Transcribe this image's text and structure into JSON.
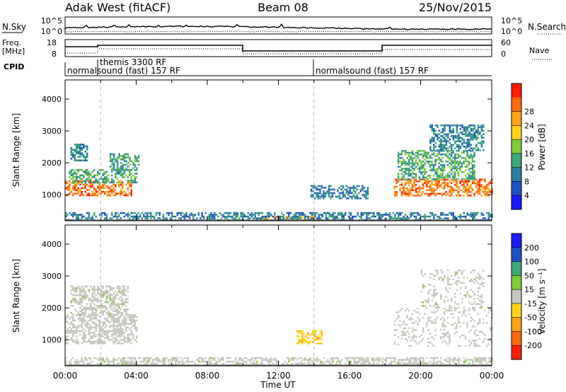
{
  "header": {
    "station": "Adak West (fitACF)",
    "beam": "Beam 08",
    "date": "25/Nov/2015"
  },
  "labels": {
    "nsky": "N.Sky",
    "nsearch": "N.Search",
    "freq_line1": "Freq.",
    "freq_line2": "[MHz]",
    "nave": "Nave",
    "cpid": "CPID",
    "power_axis": "Power [dB]",
    "velocity_axis": "Velocity [m s⁻¹]",
    "slant_range": "Slant Range [km]",
    "time_axis": "Time UT"
  },
  "noise_panel": {
    "left_ticks": [
      "10^5",
      "10^0"
    ],
    "right_ticks": [
      "10^5",
      "10^0"
    ]
  },
  "freq_panel": {
    "left_ticks": [
      "18",
      "8"
    ],
    "right_ticks": [
      "60",
      "0"
    ]
  },
  "cpid_panel": {
    "entries": [
      {
        "start_hour": 0.0,
        "label": "normalsound (fast) 157 RF"
      },
      {
        "start_hour": 2.0,
        "label": "themis 3300 RF"
      },
      {
        "start_hour": 14.0,
        "label": "normalsound (fast) 157 RF"
      }
    ]
  },
  "colors": {
    "power_scale": [
      "#1a1aff",
      "#2050c8",
      "#2a7fa0",
      "#3fa878",
      "#7fcc3a",
      "#ffd21e",
      "#ffa514",
      "#ff6a0a",
      "#ff1e00"
    ],
    "velocity_scale": [
      "#ff1e00",
      "#ff6a0a",
      "#ffa514",
      "#ffd21e",
      "#c8c8c0",
      "#7fcc3a",
      "#3fa878",
      "#2050c8",
      "#1a1aff"
    ]
  },
  "power_colorbar": {
    "ticks": [
      "4",
      "8",
      "12",
      "16",
      "20",
      "24",
      "28"
    ]
  },
  "velocity_colorbar": {
    "ticks": [
      "-200",
      "-100",
      "-50",
      "-15",
      "15",
      "50",
      "100",
      "200"
    ]
  },
  "time_ticks": [
    "00:00",
    "04:00",
    "08:00",
    "12:00",
    "16:00",
    "20:00",
    "00:00"
  ],
  "chart_data": [
    {
      "type": "heatmap",
      "quantity": "power",
      "title": "",
      "xlabel": "Time UT",
      "ylabel": "Slant Range [km]",
      "xlim_hours": [
        0,
        24
      ],
      "ylim": [
        180,
        4600
      ],
      "yticks": [
        1000,
        2000,
        3000,
        4000
      ],
      "colorbar_label": "Power [dB]",
      "zlim": [
        0,
        32
      ],
      "regions": [
        {
          "t": [
            0.0,
            3.7
          ],
          "r": [
            1000,
            1450
          ],
          "value": 26
        },
        {
          "t": [
            0.2,
            4.0
          ],
          "r": [
            1400,
            1800
          ],
          "value": 13
        },
        {
          "t": [
            0.3,
            1.2
          ],
          "r": [
            2100,
            2600
          ],
          "value": 10
        },
        {
          "t": [
            2.5,
            4.1
          ],
          "r": [
            1800,
            2300
          ],
          "value": 12
        },
        {
          "t": [
            11.0,
            14.0
          ],
          "r": [
            180,
            330
          ],
          "value": 22
        },
        {
          "t": [
            13.8,
            17.0
          ],
          "r": [
            900,
            1300
          ],
          "value": 9
        },
        {
          "t": [
            18.5,
            24.0
          ],
          "r": [
            1000,
            1500
          ],
          "value": 26
        },
        {
          "t": [
            18.7,
            23.0
          ],
          "r": [
            1500,
            2400
          ],
          "value": 13
        },
        {
          "t": [
            20.5,
            23.5
          ],
          "r": [
            2400,
            3200
          ],
          "value": 10
        },
        {
          "t": [
            0.0,
            24.0
          ],
          "r": [
            180,
            450
          ],
          "value": 9
        }
      ]
    },
    {
      "type": "heatmap",
      "quantity": "velocity",
      "title": "",
      "xlabel": "Time UT",
      "ylabel": "Slant Range [km]",
      "xlim_hours": [
        0,
        24
      ],
      "ylim": [
        180,
        4600
      ],
      "yticks": [
        1000,
        2000,
        3000,
        4000
      ],
      "colorbar_label": "Velocity [m s⁻¹]",
      "zlim": [
        -250,
        250
      ],
      "regions": [
        {
          "t": [
            0.0,
            4.0
          ],
          "r": [
            900,
            1800
          ],
          "value": 0
        },
        {
          "t": [
            0.3,
            3.5
          ],
          "r": [
            1800,
            2700
          ],
          "value": 5
        },
        {
          "t": [
            13.0,
            14.4
          ],
          "r": [
            900,
            1300
          ],
          "value": -70
        },
        {
          "t": [
            18.5,
            24.0
          ],
          "r": [
            800,
            2000
          ],
          "value": 0
        },
        {
          "t": [
            20.0,
            23.5
          ],
          "r": [
            2000,
            3200
          ],
          "value": 5
        },
        {
          "t": [
            0.0,
            24.0
          ],
          "r": [
            180,
            450
          ],
          "value": 5
        }
      ]
    }
  ]
}
